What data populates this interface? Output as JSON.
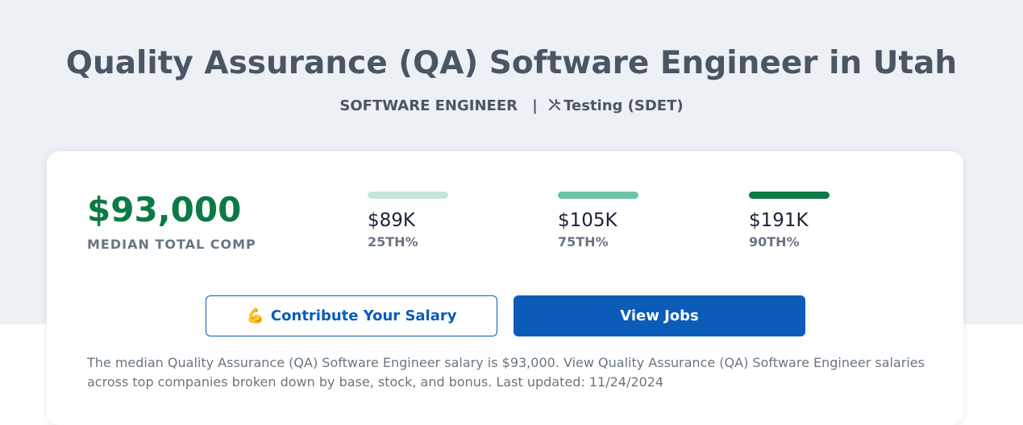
{
  "header": {
    "title": "Quality Assurance (QA) Software Engineer in Utah",
    "category": "SOFTWARE ENGINEER",
    "separator": "|",
    "specialty": "Testing (SDET)"
  },
  "card": {
    "median": {
      "value": "$93,000",
      "label": "MEDIAN TOTAL COMP"
    },
    "percentiles": [
      {
        "value": "$89K",
        "label": "25TH%",
        "color": "#c4e6da"
      },
      {
        "value": "$105K",
        "label": "75TH%",
        "color": "#6ec5a5"
      },
      {
        "value": "$191K",
        "label": "90TH%",
        "color": "#0b7a45"
      }
    ],
    "buttons": {
      "contribute": {
        "icon": "💪",
        "label": "Contribute Your Salary"
      },
      "jobs": {
        "label": "View Jobs"
      }
    },
    "description": "The median Quality Assurance (QA) Software Engineer salary is $93,000. View Quality Assurance (QA) Software Engineer salaries across top companies broken down by base, stock, and bonus. Last updated: 11/24/2024"
  }
}
